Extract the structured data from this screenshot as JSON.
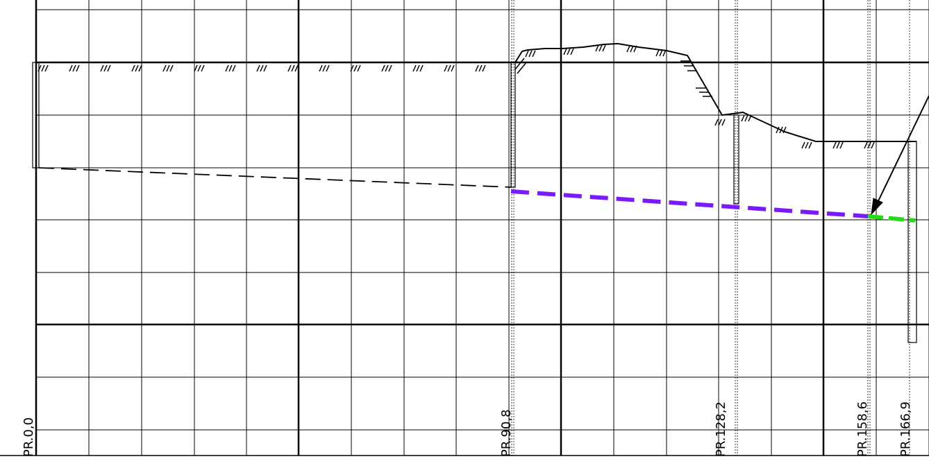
{
  "drawing": {
    "type": "longitudinal-profile",
    "stations": [
      {
        "label": "PR.0,0",
        "value": 0.0
      },
      {
        "label": "PR.90,8",
        "value": 90.8
      },
      {
        "label": "PR.128,2",
        "value": 128.2
      },
      {
        "label": "PR.158,6",
        "value": 158.6
      },
      {
        "label": "PR.166,9",
        "value": 166.9
      }
    ],
    "colors": {
      "grid": "#000000",
      "existing_pipe_dashed": "#000000",
      "pipe_segment_purple": "#7a1bff",
      "pipe_segment_green": "#22dd11",
      "terrain": "#000000"
    },
    "pipe_segments": [
      {
        "from": "PR.0,0",
        "to": "PR.90,8",
        "style": "thin-dashed",
        "color": "#000000"
      },
      {
        "from": "PR.90,8",
        "to": "PR.158,6",
        "style": "thick-dashed",
        "color": "#7a1bff"
      },
      {
        "from": "PR.158,6",
        "to": "PR.166,9",
        "style": "thick-dashed",
        "color": "#22dd11"
      }
    ]
  }
}
